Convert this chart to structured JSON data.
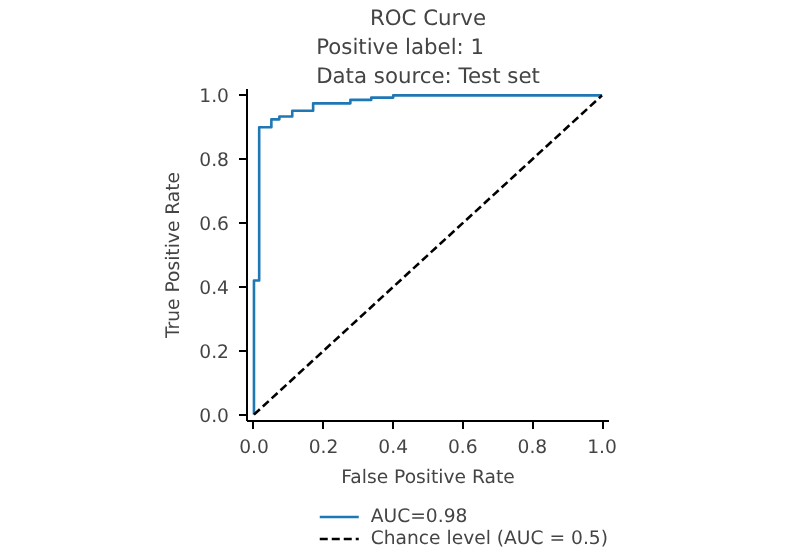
{
  "chart_data": {
    "type": "line",
    "title": "ROC Curve",
    "subtitle": "Positive label: 1\nData source: Test set",
    "xlabel": "False Positive Rate",
    "ylabel": "True Positive Rate",
    "series": [
      {
        "name": "AUC=0.98",
        "color": "#1f77b4",
        "line_style": "solid",
        "x": [
          0,
          0,
          0.015,
          0.015,
          0.05,
          0.05,
          0.073,
          0.073,
          0.11,
          0.11,
          0.17,
          0.17,
          0.277,
          0.277,
          0.337,
          0.337,
          0.4,
          0.4,
          1
        ],
        "values": [
          0,
          0.42,
          0.42,
          0.9,
          0.9,
          0.925,
          0.925,
          0.934,
          0.934,
          0.952,
          0.952,
          0.975,
          0.975,
          0.986,
          0.986,
          0.993,
          0.993,
          1,
          1
        ]
      },
      {
        "name": "Chance level (AUC = 0.5)",
        "color": "#000000",
        "line_style": "dashed",
        "x": [
          0,
          1
        ],
        "values": [
          0,
          1
        ]
      }
    ],
    "xlim": [
      -0.02,
      1.02
    ],
    "ylim": [
      -0.02,
      1.02
    ],
    "xticks": [
      {
        "value": 0,
        "label": "0.0"
      },
      0.2,
      0.4,
      0.6,
      0.8,
      {
        "value": 1,
        "label": "1.0"
      }
    ],
    "yticks": [
      {
        "value": 0,
        "label": "0.0"
      },
      0.2,
      0.4,
      0.6,
      0.8,
      {
        "value": 1,
        "label": "1.0"
      }
    ],
    "grid": false,
    "legend": "bottom"
  }
}
